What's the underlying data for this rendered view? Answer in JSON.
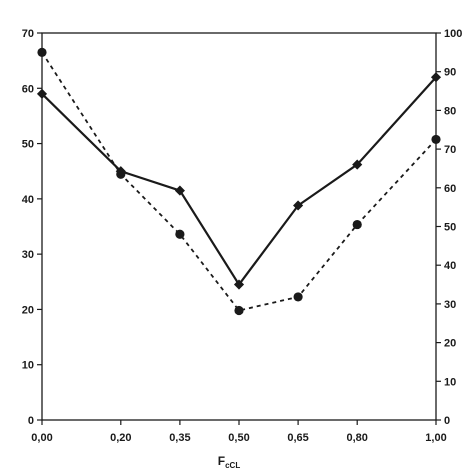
{
  "chart_data": {
    "type": "line",
    "title": "",
    "xlabel": "F",
    "xlabel_sub": "cCL",
    "ylabel": "",
    "y2label": "",
    "x": [
      0.0,
      0.2,
      0.35,
      0.5,
      0.65,
      0.8,
      1.0
    ],
    "x_tick_labels": [
      "0,00",
      "0,20",
      "0,35",
      "0,50",
      "0,65",
      "0,80",
      "1,00"
    ],
    "xlim": [
      0.0,
      1.0
    ],
    "ylim": [
      0,
      70
    ],
    "y_ticks": [
      0,
      10,
      20,
      30,
      40,
      50,
      60,
      70
    ],
    "y2lim": [
      0,
      100
    ],
    "y2_ticks": [
      0,
      10,
      20,
      30,
      40,
      50,
      60,
      70,
      80,
      90,
      100
    ],
    "grid": false,
    "series": [
      {
        "axis": "left",
        "style": "solid",
        "marker": "diamond",
        "color": "#1a1a1a",
        "values": [
          59,
          45,
          41.5,
          24.5,
          38.8,
          46.2,
          62
        ]
      },
      {
        "axis": "right",
        "style": "dashed",
        "marker": "circle",
        "color": "#1a1a1a",
        "values": [
          95,
          63.5,
          48,
          28.3,
          31.8,
          50.5,
          72.5
        ]
      }
    ]
  }
}
